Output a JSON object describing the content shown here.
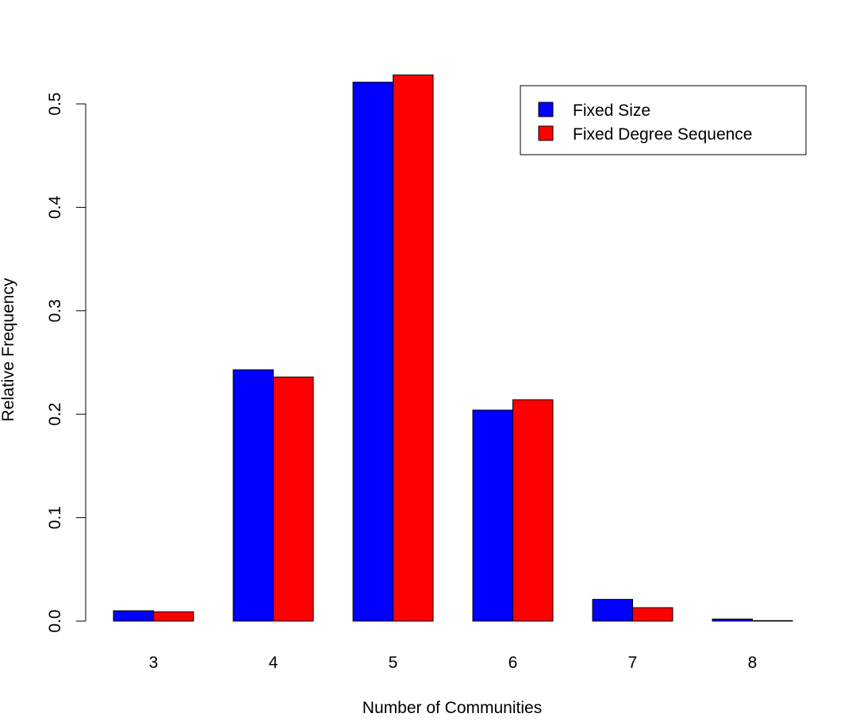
{
  "chart_data": {
    "type": "bar",
    "title": "",
    "xlabel": "Number of Communities",
    "ylabel": "Relative Frequency",
    "categories": [
      "3",
      "4",
      "5",
      "6",
      "7",
      "8"
    ],
    "series": [
      {
        "name": "Fixed Size",
        "color": "#0000ff",
        "values": [
          0.01,
          0.243,
          0.521,
          0.204,
          0.021,
          0.002
        ]
      },
      {
        "name": "Fixed Degree Sequence",
        "color": "#ff0000",
        "values": [
          0.009,
          0.236,
          0.528,
          0.214,
          0.013,
          0.0005
        ]
      }
    ],
    "ylim": [
      0,
      0.5
    ],
    "yticks": [
      "0.0",
      "0.1",
      "0.2",
      "0.3",
      "0.4",
      "0.5"
    ],
    "grid": false,
    "legend_position": "top-right"
  }
}
